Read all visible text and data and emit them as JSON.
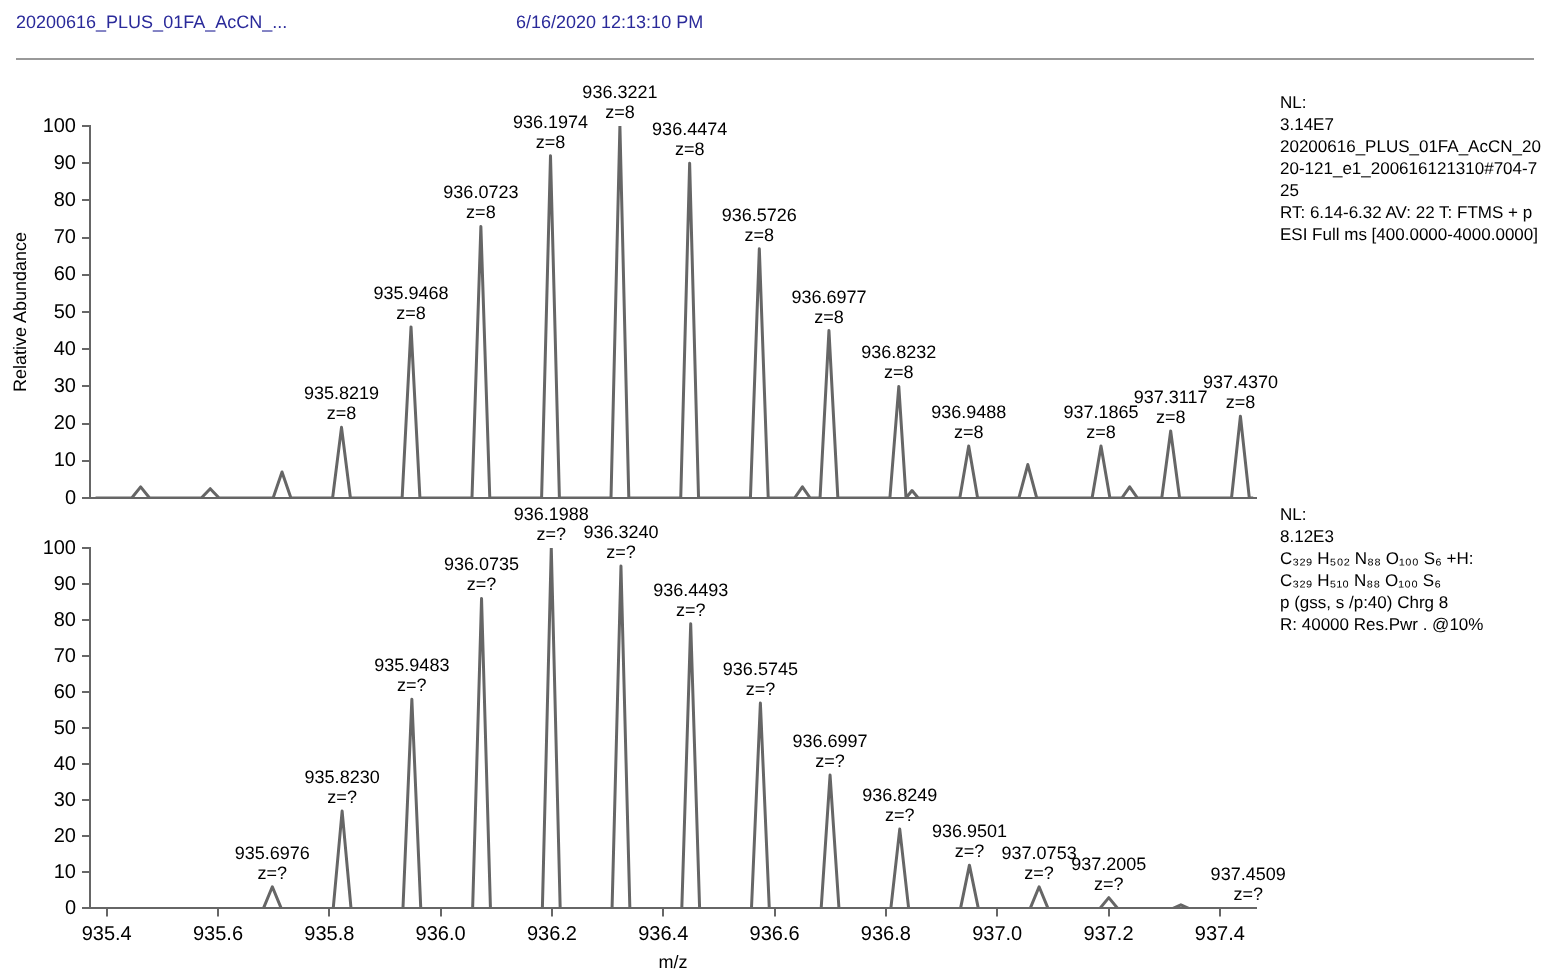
{
  "chart_data": [
    {
      "type": "line",
      "title": "20200616_PLUS_01FA_AcCN_...",
      "subtitle": "6/16/2020 12:13:10 PM",
      "ylabel": "Relative Abundance",
      "color": "#666666",
      "tick_labels": "y",
      "x": [
        935.38,
        935.445,
        935.461,
        935.477,
        935.57,
        935.586,
        935.602,
        935.699,
        935.715,
        935.731,
        935.8059,
        935.8219,
        935.8379,
        935.9308,
        935.9468,
        935.9628,
        936.0563,
        936.0723,
        936.0883,
        936.1814,
        936.1974,
        936.2134,
        936.3061,
        936.3221,
        936.3381,
        936.4314,
        936.4474,
        936.4634,
        936.5566,
        936.5726,
        936.5886,
        936.636,
        936.65,
        936.664,
        936.6817,
        936.6977,
        936.7137,
        936.8072,
        936.8232,
        936.8362,
        936.837,
        936.847,
        936.858,
        936.9328,
        936.9488,
        936.9648,
        937.039,
        937.055,
        937.071,
        937.1705,
        937.1865,
        937.2025,
        937.224,
        937.238,
        937.252,
        937.2957,
        937.3117,
        937.3277,
        937.421,
        937.437,
        937.453,
        937.46
      ],
      "values": [
        0,
        0,
        3,
        0,
        0,
        2.5,
        0,
        0,
        7,
        0,
        0,
        19,
        0,
        0,
        46,
        0,
        0,
        73,
        0,
        0,
        92,
        0,
        0,
        100,
        0,
        0,
        90,
        0,
        0,
        67,
        0,
        0,
        3,
        0,
        0,
        45,
        0,
        0,
        30,
        0,
        0,
        2,
        0,
        0,
        14,
        0,
        0,
        9,
        0,
        0,
        14,
        0,
        0,
        3,
        0,
        0,
        18,
        0,
        0,
        22,
        0,
        0
      ],
      "xlim": [
        935.37,
        937.465
      ],
      "ylim": [
        0,
        100
      ],
      "yticks": [
        0,
        10,
        20,
        30,
        40,
        50,
        60,
        70,
        80,
        90,
        100
      ],
      "annotations": [
        {
          "text": "935.8219\nz=8",
          "x": 935.8219,
          "y": 19
        },
        {
          "text": "935.9468\nz=8",
          "x": 935.9468,
          "y": 46
        },
        {
          "text": "936.0723\nz=8",
          "x": 936.0723,
          "y": 73
        },
        {
          "text": "936.1974\nz=8",
          "x": 936.1974,
          "y": 92
        },
        {
          "text": "936.3221\nz=8",
          "x": 936.3221,
          "y": 100
        },
        {
          "text": "936.4474\nz=8",
          "x": 936.4474,
          "y": 90
        },
        {
          "text": "936.5726\nz=8",
          "x": 936.5726,
          "y": 67
        },
        {
          "text": "936.6977\nz=8",
          "x": 936.6977,
          "y": 45
        },
        {
          "text": "936.8232\nz=8",
          "x": 936.8232,
          "y": 30
        },
        {
          "text": "936.9488\nz=8",
          "x": 936.9488,
          "y": 14
        },
        {
          "text": "937.1865\nz=8",
          "x": 937.1865,
          "y": 14
        },
        {
          "text": "937.3117\nz=8",
          "x": 937.3117,
          "y": 18
        },
        {
          "text": "937.4370\nz=8",
          "x": 937.437,
          "y": 22
        },
        "NL:",
        "3.14E7",
        "20200616_PLUS_01FA_AcCN_2020-121_e1_200616121310#704-725",
        "RT: 6.14-6.32  AV: 22 T: FTMS + p ESI Full ms [400.0000-4000.0000]"
      ]
    },
    {
      "type": "line",
      "xlabel": "m/z",
      "color": "#666666",
      "x": [
        935.38,
        935.6816,
        935.6976,
        935.7136,
        935.807,
        935.823,
        935.839,
        935.9323,
        935.9483,
        935.9643,
        936.0575,
        936.0735,
        936.0895,
        936.1828,
        936.1988,
        936.2148,
        936.308,
        936.324,
        936.34,
        936.4333,
        936.4493,
        936.4653,
        936.5585,
        936.5745,
        936.5905,
        936.6837,
        936.6997,
        936.7157,
        936.8089,
        936.8249,
        936.8409,
        936.9341,
        936.9501,
        936.9661,
        937.0593,
        937.0753,
        937.0913,
        937.1845,
        937.2005,
        937.2165,
        937.316,
        937.33,
        937.344,
        937.46
      ],
      "values": [
        0,
        0,
        6,
        0,
        0,
        27,
        0,
        0,
        58,
        0,
        0,
        86,
        0,
        0,
        100,
        0,
        0,
        95,
        0,
        0,
        79,
        0,
        0,
        57,
        0,
        0,
        37,
        0,
        0,
        22,
        0,
        0,
        12,
        0,
        0,
        6,
        0,
        0,
        3,
        0,
        0,
        1,
        0,
        0
      ],
      "xlim": [
        935.37,
        937.465
      ],
      "xticks": [
        935.4,
        935.6,
        935.8,
        {
          "value": 936,
          "label": "936.0"
        },
        936.2,
        936.4,
        936.6,
        936.8,
        {
          "value": 937,
          "label": "937.0"
        },
        937.2,
        937.4
      ],
      "ylim": [
        0,
        100
      ],
      "yticks": [
        0,
        10,
        20,
        30,
        40,
        50,
        60,
        70,
        80,
        90,
        100
      ],
      "annotations": [
        {
          "text": "935.6976\nz=?",
          "x": 935.6976,
          "y": 6
        },
        {
          "text": "935.8230\nz=?",
          "x": 935.823,
          "y": 27
        },
        {
          "text": "935.9483\nz=?",
          "x": 935.9483,
          "y": 58
        },
        {
          "text": "936.0735\nz=?",
          "x": 936.0735,
          "y": 86
        },
        {
          "text": "936.1988\nz=?",
          "x": 936.1988,
          "y": 100
        },
        {
          "text": "936.3240\nz=?",
          "x": 936.324,
          "y": 95
        },
        {
          "text": "936.4493\nz=?",
          "x": 936.4493,
          "y": 79
        },
        {
          "text": "936.5745\nz=?",
          "x": 936.5745,
          "y": 57
        },
        {
          "text": "936.6997\nz=?",
          "x": 936.6997,
          "y": 37
        },
        {
          "text": "936.8249\nz=?",
          "x": 936.8249,
          "y": 22
        },
        {
          "text": "936.9501\nz=?",
          "x": 936.9501,
          "y": 12
        },
        {
          "text": "937.0753\nz=?",
          "x": 937.0753,
          "y": 6
        },
        {
          "text": "937.2005\nz=?",
          "x": 937.2005,
          "y": 3
        },
        {
          "text": "937.4509\nz=?",
          "x": 937.4509,
          "y": 0
        },
        "NL:",
        "8.12E3",
        "C₃₂₉ H₅₀₂ N₈₈ O₁₀₀ S₆ +H:",
        "C₃₂₉ H₅₁₀ N₈₈ O₁₀₀ S₆",
        "p (gss, s /p:40) Chrg 8",
        "R: 40000  Res.Pwr . @10%"
      ]
    }
  ]
}
